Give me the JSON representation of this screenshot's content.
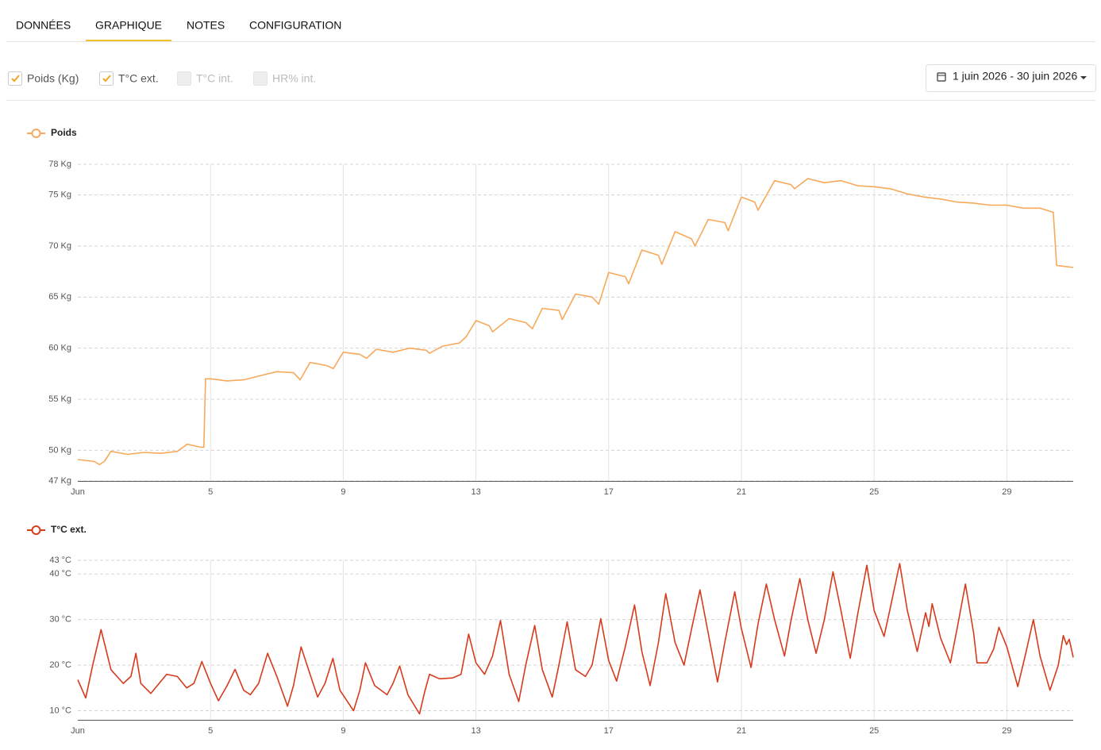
{
  "tabs": [
    {
      "label": "DONNÉES",
      "active": false
    },
    {
      "label": "GRAPHIQUE",
      "active": true
    },
    {
      "label": "NOTES",
      "active": false
    },
    {
      "label": "CONFIGURATION",
      "active": false
    }
  ],
  "filters": [
    {
      "label": "Poids (Kg)",
      "checked": true
    },
    {
      "label": "T°C ext.",
      "checked": true
    },
    {
      "label": "T°C int.",
      "checked": false
    },
    {
      "label": "HR% int.",
      "checked": false
    }
  ],
  "date_range": "1 juin 2026 - 30 juin 2026",
  "chart_data": [
    {
      "type": "line",
      "xlim": [
        1,
        31
      ],
      "xticks": [
        {
          "value": 1,
          "label": "Jun"
        },
        5,
        9,
        13,
        17,
        21,
        25,
        29
      ],
      "ylim": [
        47,
        78
      ],
      "yticks": [
        {
          "value": 47,
          "label": "47 Kg"
        },
        {
          "value": 50,
          "label": "50 Kg"
        },
        {
          "value": 55,
          "label": "55 Kg"
        },
        {
          "value": 60,
          "label": "60 Kg"
        },
        {
          "value": 65,
          "label": "65 Kg"
        },
        {
          "value": 70,
          "label": "70 Kg"
        },
        {
          "value": 75,
          "label": "75 Kg"
        },
        {
          "value": 78,
          "label": "78 Kg"
        }
      ],
      "grid": true,
      "x": [
        1,
        1.5,
        1.65,
        1.8,
        2,
        2.5,
        3,
        3.5,
        4,
        4.3,
        4.7,
        4.8,
        4.85,
        5,
        5.5,
        6,
        6.5,
        7,
        7.5,
        7.7,
        8,
        8.5,
        8.7,
        9,
        9.5,
        9.7,
        10,
        10.5,
        11,
        11.5,
        11.6,
        12,
        12.5,
        12.7,
        13,
        13.4,
        13.5,
        14,
        14.5,
        14.7,
        15,
        15.5,
        15.6,
        16,
        16.5,
        16.7,
        17,
        17.5,
        17.6,
        18,
        18.5,
        18.6,
        19,
        19.5,
        19.6,
        20,
        20.5,
        20.6,
        21,
        21.4,
        21.5,
        22,
        22.5,
        22.6,
        23,
        23.5,
        24,
        24.5,
        25,
        25.5,
        26,
        26.5,
        27,
        27.5,
        28,
        28.5,
        29,
        29.5,
        30,
        30.4,
        30.5,
        31
      ],
      "series": [
        {
          "name": "Poids",
          "color": "#f7a95b",
          "values": [
            49.1,
            48.9,
            48.6,
            48.9,
            49.9,
            49.6,
            49.8,
            49.7,
            49.9,
            50.6,
            50.3,
            50.3,
            57,
            57,
            56.8,
            56.9,
            57.3,
            57.7,
            57.6,
            56.9,
            58.6,
            58.3,
            58,
            59.6,
            59.4,
            59,
            59.9,
            59.6,
            60,
            59.8,
            59.5,
            60.2,
            60.5,
            61.1,
            62.7,
            62.2,
            61.6,
            62.9,
            62.5,
            61.9,
            63.9,
            63.7,
            62.8,
            65.3,
            65,
            64.3,
            67.4,
            67,
            66.3,
            69.6,
            69.1,
            68.2,
            71.4,
            70.7,
            70,
            72.6,
            72.3,
            71.5,
            74.8,
            74.3,
            73.5,
            76.4,
            76,
            75.6,
            76.6,
            76.2,
            76.4,
            75.9,
            75.8,
            75.6,
            75.1,
            74.8,
            74.6,
            74.3,
            74.2,
            74,
            74,
            73.7,
            73.7,
            73.3,
            68.1,
            67.9
          ]
        }
      ]
    },
    {
      "type": "line",
      "xlim": [
        1,
        31
      ],
      "xticks": [
        {
          "value": 1,
          "label": "Jun"
        },
        5,
        9,
        13,
        17,
        21,
        25,
        29
      ],
      "ylim": [
        8,
        43
      ],
      "yticks": [
        {
          "value": 10,
          "label": "10 °C"
        },
        {
          "value": 20,
          "label": "20 °C"
        },
        {
          "value": 30,
          "label": "30 °C"
        },
        {
          "value": 40,
          "label": "40 °C"
        },
        {
          "value": 43,
          "label": "43 °C"
        }
      ],
      "grid": true,
      "x": [
        1,
        1.24,
        1.45,
        1.7,
        2,
        2.37,
        2.6,
        2.75,
        2.9,
        3.2,
        3.45,
        3.68,
        4,
        4.28,
        4.5,
        4.74,
        5,
        5.24,
        5.5,
        5.74,
        6,
        6.2,
        6.45,
        6.72,
        7,
        7.32,
        7.5,
        7.73,
        8,
        8.23,
        8.45,
        8.69,
        8.9,
        9.31,
        9.5,
        9.67,
        9.95,
        10.32,
        10.5,
        10.7,
        10.95,
        11.3,
        11.45,
        11.6,
        11.9,
        12.3,
        12.55,
        12.78,
        13,
        13.26,
        13.5,
        13.74,
        14,
        14.29,
        14.5,
        14.77,
        15,
        15.3,
        15.5,
        15.75,
        16,
        16.3,
        16.5,
        16.76,
        17,
        17.24,
        17.5,
        17.78,
        18,
        18.25,
        18.5,
        18.72,
        19,
        19.27,
        19.5,
        19.75,
        20,
        20.28,
        20.5,
        20.8,
        21,
        21.29,
        21.5,
        21.75,
        22,
        22.3,
        22.5,
        22.76,
        23,
        23.25,
        23.5,
        23.76,
        24,
        24.28,
        24.5,
        24.78,
        25,
        25.3,
        25.5,
        25.77,
        26,
        26.3,
        26.55,
        26.65,
        26.75,
        27,
        27.3,
        27.5,
        27.75,
        28,
        28.1,
        28.4,
        28.6,
        28.76,
        29,
        29.33,
        29.55,
        29.8,
        30,
        30.3,
        30.55,
        30.7,
        30.8,
        30.88,
        31
      ],
      "series": [
        {
          "name": "T°C ext.",
          "color": "#d73a1c",
          "values": [
            16.8,
            12.8,
            20,
            27.8,
            19,
            16,
            17.5,
            22.6,
            16,
            13.8,
            16,
            18,
            17.5,
            15,
            16,
            20.8,
            16,
            12.2,
            15.5,
            19.1,
            14.5,
            13.5,
            16,
            22.6,
            17.5,
            11,
            15.5,
            24,
            18,
            13,
            16,
            21.5,
            14.5,
            10,
            14.5,
            20.5,
            15.5,
            13.5,
            16,
            19.8,
            13.5,
            9.3,
            14,
            18,
            17,
            17.2,
            18,
            26.8,
            20.5,
            18,
            22,
            29.8,
            18,
            12,
            20,
            28.7,
            19,
            13,
            20,
            29.5,
            19,
            17.5,
            20,
            30.2,
            21,
            16.5,
            24,
            33.2,
            23,
            15.5,
            25,
            35.7,
            25,
            20,
            28,
            36.5,
            27,
            16.3,
            25,
            36.1,
            28,
            19.5,
            29,
            37.8,
            30,
            22,
            30,
            39,
            30,
            22.6,
            30,
            40.5,
            32,
            21.5,
            31,
            41.9,
            32,
            26.3,
            33,
            42.3,
            32,
            23,
            31.5,
            28.5,
            33.5,
            26,
            20.5,
            28,
            37.8,
            27,
            20.5,
            20.5,
            23.5,
            28.3,
            24,
            15.3,
            22,
            30,
            22,
            14.5,
            20,
            26.5,
            24.5,
            25.7,
            21.7
          ]
        }
      ]
    }
  ]
}
